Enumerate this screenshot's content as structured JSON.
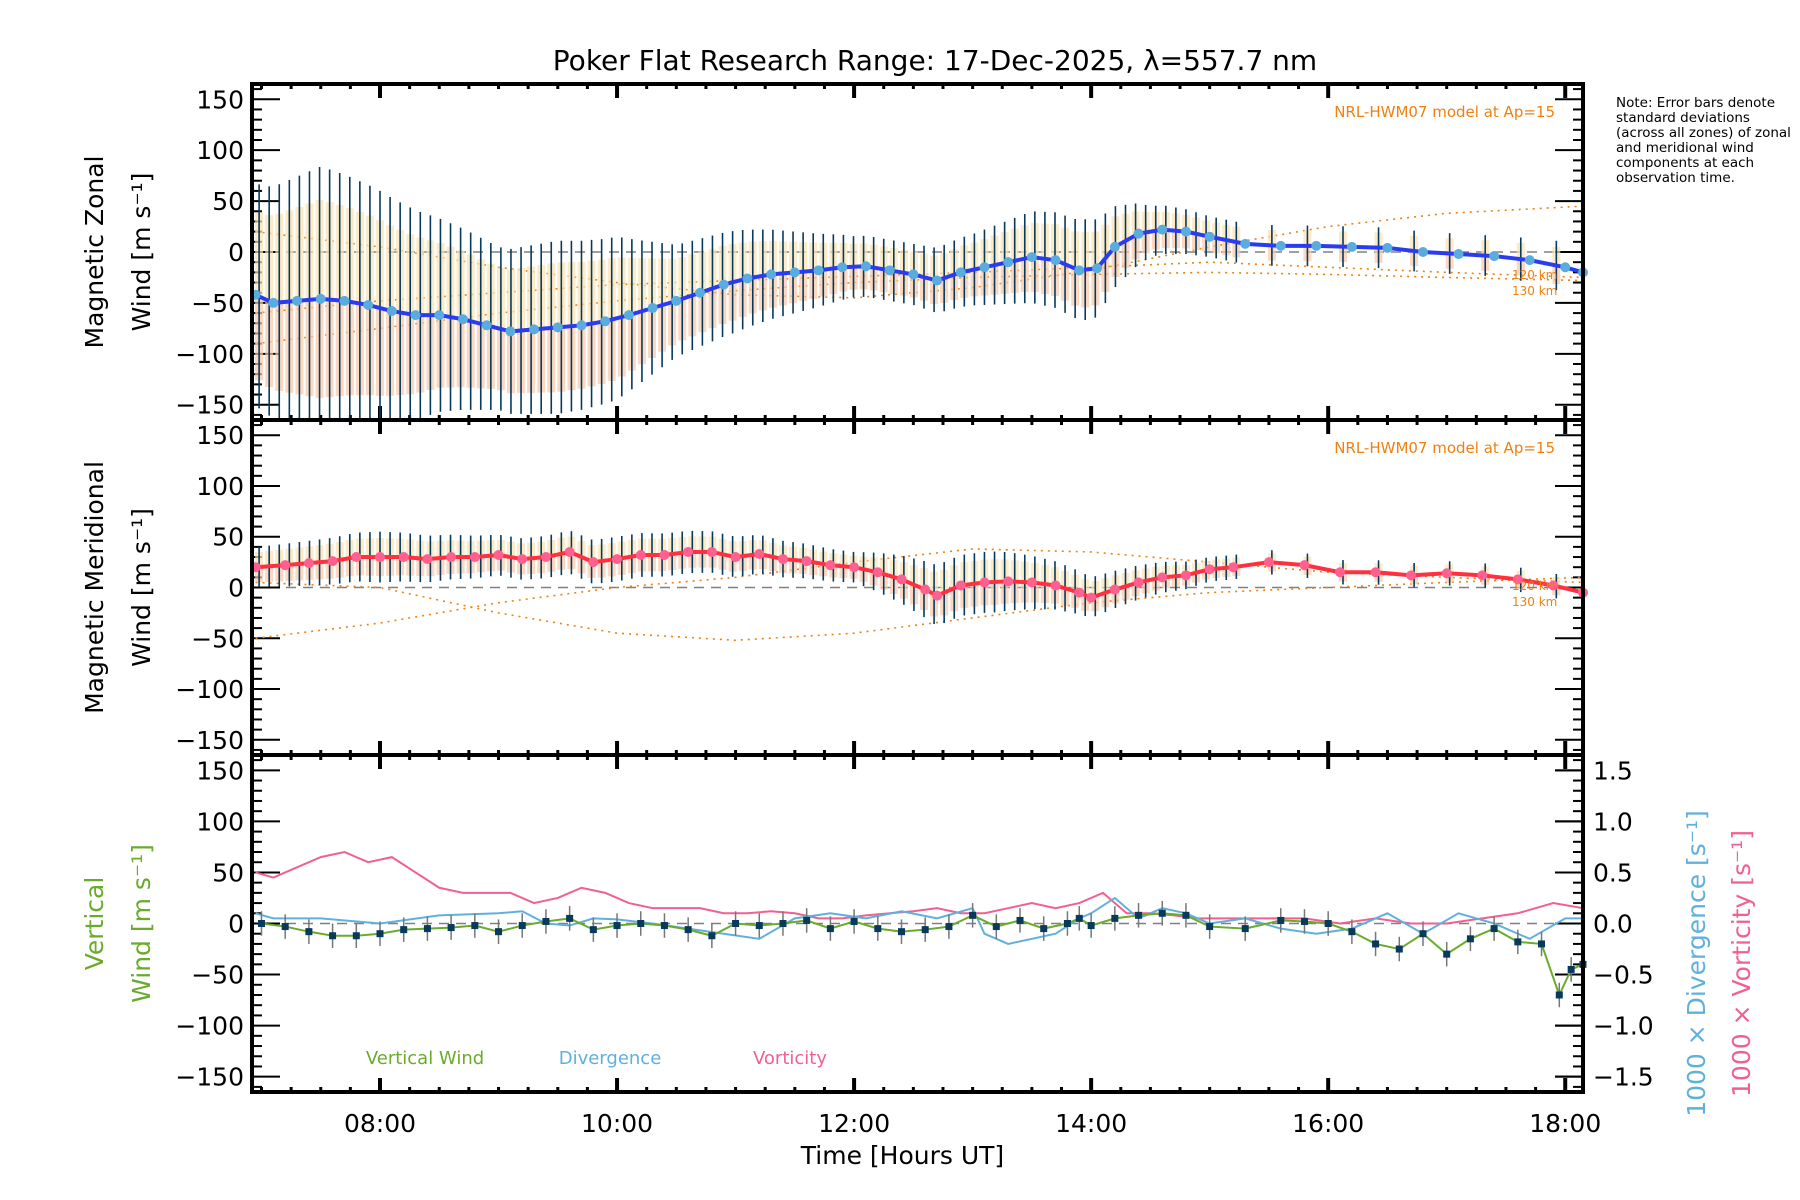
{
  "title": "Poker Flat Research Range: 17-Dec-2025, λ=557.7 nm",
  "note": "Note: Error bars denote standard deviations (across all zones) of zonal and meridional wind components at each observation time.",
  "colors": {
    "zonal_line": "#2a3cf0",
    "zonal_marker": "#5aacde",
    "meridional_line": "#ff3040",
    "meridional_marker": "#ff6090",
    "errorbar": "#073a5c",
    "model": "#f08010",
    "vertical": "#6aab2c",
    "vertical_marker": "#073a5c",
    "divergence": "#60b0dc",
    "vorticity": "#f06090",
    "zero_line": "#808080",
    "zone_points_warm": "#f8c8a8",
    "zone_points_cool": "#b8b8e0"
  },
  "chart_data": [
    {
      "type": "line",
      "panel": "zonal",
      "ylabel_line1": "Magnetic Zonal",
      "ylabel_line2": "Wind [m s⁻¹]",
      "ylim": [
        -165,
        165
      ],
      "yticks": [
        -150,
        -100,
        -50,
        0,
        50,
        100,
        150
      ],
      "xlim": [
        6.92,
        18.15
      ],
      "model_label": "NRL-HWM07 model at Ap=15",
      "model_alt_labels": [
        "120 km",
        "130 km"
      ],
      "series": [
        {
          "name": "Zonal wind (mean)",
          "x": [
            6.95,
            7.1,
            7.3,
            7.5,
            7.7,
            7.9,
            8.1,
            8.3,
            8.5,
            8.7,
            8.9,
            9.1,
            9.3,
            9.5,
            9.7,
            9.9,
            10.1,
            10.3,
            10.5,
            10.7,
            10.9,
            11.1,
            11.3,
            11.5,
            11.7,
            11.9,
            12.1,
            12.3,
            12.5,
            12.7,
            12.9,
            13.1,
            13.3,
            13.5,
            13.7,
            13.9,
            14.05,
            14.2,
            14.4,
            14.6,
            14.8,
            15.0,
            15.3,
            15.6,
            15.9,
            16.2,
            16.5,
            16.8,
            17.1,
            17.4,
            17.7,
            18.0,
            18.15
          ],
          "values": [
            -42,
            -50,
            -48,
            -46,
            -48,
            -52,
            -58,
            -62,
            -62,
            -66,
            -72,
            -78,
            -76,
            -74,
            -72,
            -68,
            -62,
            -55,
            -48,
            -40,
            -32,
            -26,
            -22,
            -20,
            -18,
            -15,
            -14,
            -18,
            -22,
            -28,
            -20,
            -15,
            -10,
            -5,
            -8,
            -18,
            -16,
            5,
            18,
            22,
            20,
            15,
            8,
            6,
            6,
            5,
            4,
            0,
            -2,
            -4,
            -8,
            -15,
            -20
          ]
        },
        {
          "name": "Model 120 km",
          "x": [
            6.95,
            8,
            9,
            10,
            11,
            12,
            13,
            14,
            15,
            16,
            17,
            18.15
          ],
          "values": [
            20,
            5,
            -15,
            -30,
            -42,
            -45,
            -35,
            -18,
            5,
            25,
            38,
            45
          ]
        },
        {
          "name": "Model 130 km",
          "x": [
            6.95,
            8,
            9,
            10,
            11,
            12,
            13,
            14,
            15,
            16,
            17,
            18.15
          ],
          "values": [
            -90,
            -75,
            -60,
            -48,
            -38,
            -30,
            -25,
            -22,
            -20,
            -22,
            -25,
            -28
          ]
        },
        {
          "name": "Model 120 km (meridional ref)",
          "x": [
            6.95,
            8,
            9,
            10,
            11,
            12,
            13,
            14,
            15,
            16,
            17,
            18.15
          ],
          "values": [
            -60,
            -48,
            -40,
            -32,
            -28,
            -24,
            -20,
            -15,
            -10,
            -15,
            -20,
            -25
          ]
        }
      ],
      "errorbar_std": [
        {
          "x": 7.0,
          "std": 110
        },
        {
          "x": 7.5,
          "std": 130
        },
        {
          "x": 8.0,
          "std": 115
        },
        {
          "x": 8.5,
          "std": 95
        },
        {
          "x": 9.0,
          "std": 80
        },
        {
          "x": 9.5,
          "std": 85
        },
        {
          "x": 10.0,
          "std": 80
        },
        {
          "x": 10.5,
          "std": 55
        },
        {
          "x": 11.0,
          "std": 50
        },
        {
          "x": 11.5,
          "std": 40
        },
        {
          "x": 12.0,
          "std": 30
        },
        {
          "x": 12.5,
          "std": 30
        },
        {
          "x": 13.0,
          "std": 35
        },
        {
          "x": 13.5,
          "std": 45
        },
        {
          "x": 14.0,
          "std": 50
        },
        {
          "x": 14.5,
          "std": 25
        },
        {
          "x": 15.0,
          "std": 20
        },
        {
          "x": 15.5,
          "std": 20
        },
        {
          "x": 16.0,
          "std": 20
        },
        {
          "x": 16.5,
          "std": 20
        },
        {
          "x": 17.0,
          "std": 20
        },
        {
          "x": 17.5,
          "std": 20
        },
        {
          "x": 18.0,
          "std": 25
        }
      ]
    },
    {
      "type": "line",
      "panel": "meridional",
      "ylabel_line1": "Magnetic Meridional",
      "ylabel_line2": "Wind [m s⁻¹]",
      "ylim": [
        -165,
        165
      ],
      "yticks": [
        -150,
        -100,
        -50,
        0,
        50,
        100,
        150
      ],
      "xlim": [
        6.92,
        18.15
      ],
      "model_label": "NRL-HWM07 model at Ap=15",
      "model_alt_labels": [
        "120 km",
        "130 km"
      ],
      "series": [
        {
          "name": "Meridional wind (mean)",
          "x": [
            6.95,
            7.2,
            7.4,
            7.6,
            7.8,
            8.0,
            8.2,
            8.4,
            8.6,
            8.8,
            9.0,
            9.2,
            9.4,
            9.6,
            9.8,
            10.0,
            10.2,
            10.4,
            10.6,
            10.8,
            11.0,
            11.2,
            11.4,
            11.6,
            11.8,
            12.0,
            12.2,
            12.4,
            12.6,
            12.7,
            12.9,
            13.1,
            13.3,
            13.5,
            13.7,
            13.9,
            14.0,
            14.2,
            14.4,
            14.6,
            14.8,
            15.0,
            15.2,
            15.5,
            15.8,
            16.1,
            16.4,
            16.7,
            17.0,
            17.3,
            17.6,
            17.9,
            18.15
          ],
          "values": [
            20,
            22,
            24,
            26,
            30,
            30,
            30,
            28,
            30,
            30,
            32,
            28,
            30,
            35,
            25,
            28,
            32,
            32,
            35,
            35,
            30,
            33,
            28,
            26,
            22,
            20,
            15,
            8,
            -2,
            -8,
            2,
            5,
            6,
            5,
            2,
            -5,
            -10,
            -2,
            5,
            10,
            12,
            18,
            20,
            25,
            22,
            15,
            15,
            12,
            14,
            12,
            8,
            2,
            -5
          ]
        },
        {
          "name": "Model 120 km",
          "x": [
            6.95,
            8,
            9,
            10,
            11,
            12,
            13,
            14,
            15,
            16,
            17,
            18.15
          ],
          "values": [
            -50,
            -35,
            -15,
            0,
            10,
            25,
            38,
            35,
            25,
            15,
            10,
            5
          ]
        },
        {
          "name": "Model 130 km",
          "x": [
            6.95,
            8,
            9,
            10,
            11,
            12,
            13,
            14,
            15,
            16,
            17,
            18.15
          ],
          "values": [
            5,
            0,
            -25,
            -45,
            -52,
            -45,
            -30,
            -15,
            -5,
            0,
            5,
            10
          ]
        }
      ],
      "errorbar_std": [
        {
          "x": 7.0,
          "std": 20
        },
        {
          "x": 8.0,
          "std": 25
        },
        {
          "x": 9.0,
          "std": 20
        },
        {
          "x": 10.0,
          "std": 22
        },
        {
          "x": 11.0,
          "std": 20
        },
        {
          "x": 12.0,
          "std": 15
        },
        {
          "x": 12.7,
          "std": 30
        },
        {
          "x": 13.2,
          "std": 30
        },
        {
          "x": 14.0,
          "std": 20
        },
        {
          "x": 15.0,
          "std": 12
        },
        {
          "x": 16.0,
          "std": 12
        },
        {
          "x": 17.0,
          "std": 12
        },
        {
          "x": 18.0,
          "std": 12
        }
      ]
    },
    {
      "type": "line",
      "panel": "vertical",
      "ylabel_line1": "Vertical",
      "ylabel_line2": "Wind [m s⁻¹]",
      "ylim": [
        -165,
        165
      ],
      "yticks": [
        -150,
        -100,
        -50,
        0,
        50,
        100,
        150
      ],
      "y2label_divergence": "1000 × Divergence [s⁻¹]",
      "y2label_vorticity": "1000 × Vorticity [s⁻¹]",
      "y2lim": [
        -1.65,
        1.65
      ],
      "y2ticks": [
        "−1.5",
        "−1.0",
        "−0.5",
        "0.0",
        "0.5",
        "1.0",
        "1.5"
      ],
      "xlim": [
        6.92,
        18.15
      ],
      "xticks": [
        "08:00",
        "10:00",
        "12:00",
        "14:00",
        "16:00",
        "18:00"
      ],
      "xtick_values": [
        8,
        10,
        12,
        14,
        16,
        18
      ],
      "xlabel": "Time [Hours UT]",
      "legend": [
        "Vertical Wind",
        "Divergence",
        "Vorticity"
      ],
      "series": [
        {
          "name": "Vertical Wind",
          "axis": "left",
          "x": [
            7.0,
            7.2,
            7.4,
            7.6,
            7.8,
            8.0,
            8.2,
            8.4,
            8.6,
            8.8,
            9.0,
            9.2,
            9.4,
            9.6,
            9.8,
            10.0,
            10.2,
            10.4,
            10.6,
            10.8,
            11.0,
            11.2,
            11.4,
            11.6,
            11.8,
            12.0,
            12.2,
            12.4,
            12.6,
            12.8,
            13.0,
            13.2,
            13.4,
            13.6,
            13.8,
            13.9,
            14.0,
            14.2,
            14.4,
            14.6,
            14.8,
            15.0,
            15.3,
            15.6,
            15.8,
            16.0,
            16.2,
            16.4,
            16.6,
            16.8,
            17.0,
            17.2,
            17.4,
            17.6,
            17.8,
            17.95,
            18.05,
            18.15
          ],
          "values": [
            0,
            -3,
            -8,
            -12,
            -12,
            -10,
            -6,
            -5,
            -4,
            -2,
            -8,
            -2,
            2,
            5,
            -6,
            -2,
            0,
            -2,
            -6,
            -12,
            0,
            -2,
            0,
            3,
            -5,
            2,
            -5,
            -8,
            -6,
            -3,
            8,
            -3,
            3,
            -5,
            0,
            5,
            -2,
            5,
            8,
            10,
            8,
            -3,
            -5,
            3,
            2,
            0,
            -8,
            -20,
            -25,
            -10,
            -30,
            -15,
            -5,
            -18,
            -20,
            -70,
            -45,
            -40
          ]
        },
        {
          "name": "Divergence",
          "axis": "right",
          "x": [
            6.95,
            7.1,
            7.5,
            8.0,
            8.5,
            9.0,
            9.2,
            9.4,
            9.6,
            9.8,
            10.0,
            10.3,
            10.6,
            10.9,
            11.2,
            11.5,
            11.8,
            12.1,
            12.4,
            12.7,
            13.0,
            13.1,
            13.3,
            13.5,
            13.7,
            13.9,
            14.0,
            14.2,
            14.4,
            14.6,
            14.8,
            15.0,
            15.3,
            15.6,
            15.9,
            16.2,
            16.5,
            16.8,
            17.1,
            17.4,
            17.7,
            18.0,
            18.15
          ],
          "values": [
            0.1,
            0.05,
            0.05,
            0.0,
            0.08,
            0.1,
            0.12,
            0.0,
            -0.02,
            0.05,
            0.04,
            0.0,
            -0.05,
            -0.1,
            -0.15,
            0.05,
            0.1,
            0.05,
            0.12,
            0.05,
            0.15,
            -0.1,
            -0.2,
            -0.15,
            -0.1,
            0.05,
            0.1,
            0.25,
            0.05,
            0.15,
            0.1,
            0.0,
            0.05,
            -0.05,
            -0.1,
            -0.05,
            0.1,
            -0.1,
            0.1,
            0.0,
            -0.15,
            0.05,
            0.05
          ]
        },
        {
          "name": "Vorticity",
          "axis": "right",
          "x": [
            6.95,
            7.1,
            7.3,
            7.5,
            7.7,
            7.9,
            8.1,
            8.3,
            8.5,
            8.7,
            8.9,
            9.1,
            9.3,
            9.5,
            9.7,
            9.9,
            10.1,
            10.3,
            10.5,
            10.7,
            10.9,
            11.1,
            11.3,
            11.5,
            11.7,
            11.9,
            12.1,
            12.3,
            12.5,
            12.7,
            12.9,
            13.1,
            13.3,
            13.5,
            13.7,
            13.9,
            14.1,
            14.3,
            14.5,
            14.7,
            14.9,
            15.2,
            15.5,
            15.8,
            16.1,
            16.4,
            16.7,
            17.0,
            17.3,
            17.6,
            17.9,
            18.15
          ],
          "values": [
            0.5,
            0.45,
            0.55,
            0.65,
            0.7,
            0.6,
            0.65,
            0.5,
            0.35,
            0.3,
            0.3,
            0.3,
            0.2,
            0.25,
            0.35,
            0.3,
            0.2,
            0.15,
            0.15,
            0.15,
            0.1,
            0.1,
            0.12,
            0.1,
            0.05,
            0.05,
            0.08,
            0.1,
            0.12,
            0.15,
            0.1,
            0.1,
            0.15,
            0.2,
            0.15,
            0.2,
            0.3,
            0.1,
            0.1,
            0.08,
            0.05,
            0.05,
            0.05,
            0.05,
            0.0,
            0.05,
            0.0,
            0.0,
            0.05,
            0.1,
            0.2,
            0.15
          ]
        }
      ]
    }
  ]
}
